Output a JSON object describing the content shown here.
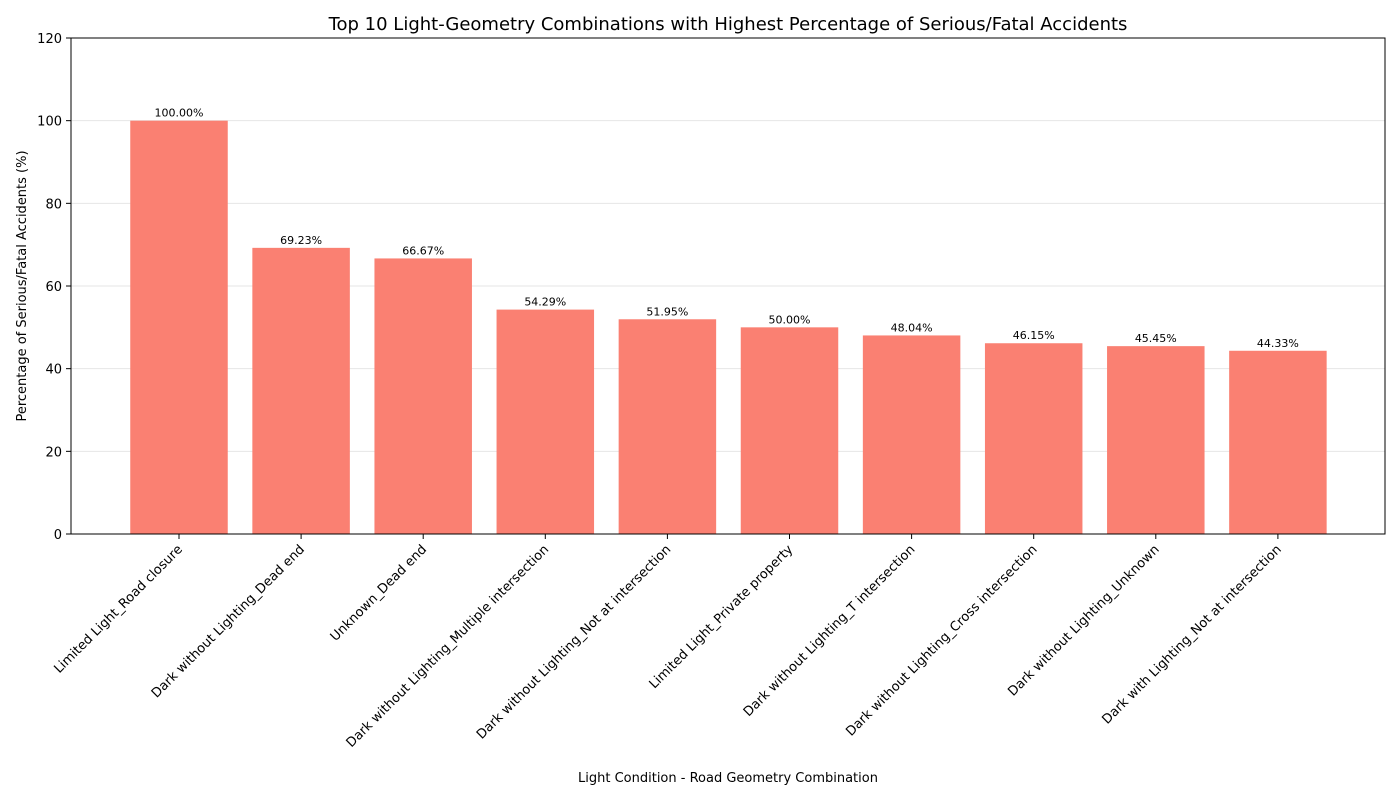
{
  "chart_data": {
    "type": "bar",
    "title": "Top 10 Light-Geometry Combinations with Highest Percentage of Serious/Fatal Accidents",
    "xlabel": "Light Condition - Road Geometry Combination",
    "ylabel": "Percentage of Serious/Fatal Accidents (%)",
    "categories": [
      "Limited Light_Road closure",
      "Dark without Lighting_Dead end",
      "Unknown_Dead end",
      "Dark without Lighting_Multiple intersection",
      "Dark without Lighting_Not at intersection",
      "Limited Light_Private property",
      "Dark without Lighting_T intersection",
      "Dark without Lighting_Cross intersection",
      "Dark without Lighting_Unknown",
      "Dark with Lighting_Not at intersection"
    ],
    "values": [
      100.0,
      69.23,
      66.67,
      54.29,
      51.95,
      50.0,
      48.04,
      46.15,
      45.45,
      44.33
    ],
    "data_labels": [
      "100.00%",
      "69.23%",
      "66.67%",
      "54.29%",
      "51.95%",
      "50.00%",
      "48.04%",
      "46.15%",
      "45.45%",
      "44.33%"
    ],
    "ylim": [
      0,
      120
    ],
    "yticks": [
      0,
      20,
      40,
      60,
      80,
      100,
      120
    ],
    "ytick_labels": [
      "0",
      "20",
      "40",
      "60",
      "80",
      "100",
      "120"
    ],
    "grid": "horizontal",
    "bar_color": "#fa8072",
    "grid_color": "#e6e6e6",
    "axis_color": "#000000"
  }
}
